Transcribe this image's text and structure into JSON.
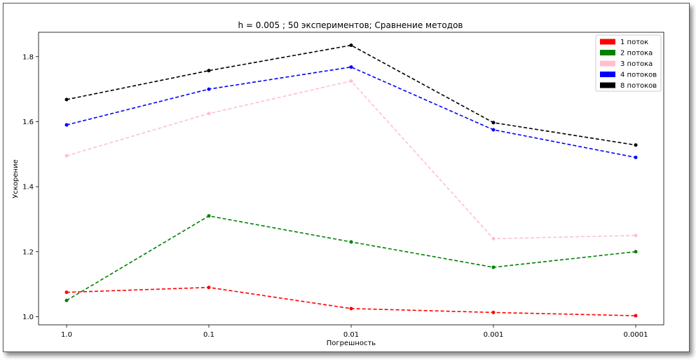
{
  "chart_data": {
    "type": "line",
    "title": "h = 0.005 ; 50 экспериментов; Сравнение методов",
    "xlabel": "Погрешность",
    "ylabel": "Ускорение",
    "categories": [
      "1.0",
      "0.1",
      "0.01",
      "0.001",
      "0.0001"
    ],
    "ylim": [
      0.975,
      1.875
    ],
    "yticks": [
      1.0,
      1.2,
      1.4,
      1.6,
      1.8
    ],
    "ytick_labels": [
      "1.0",
      "1.2",
      "1.4",
      "1.6",
      "1.8"
    ],
    "grid": false,
    "legend_position": "top-right",
    "series": [
      {
        "name": "1 поток",
        "color": "#ff0000",
        "values": [
          1.075,
          1.09,
          1.025,
          1.013,
          1.003
        ]
      },
      {
        "name": "2 потока",
        "color": "#008000",
        "values": [
          1.05,
          1.31,
          1.23,
          1.152,
          1.2
        ]
      },
      {
        "name": "3 потока",
        "color": "#ffc0cb",
        "values": [
          1.495,
          1.625,
          1.725,
          1.24,
          1.25
        ]
      },
      {
        "name": "4 потоков",
        "color": "#0000ff",
        "values": [
          1.59,
          1.7,
          1.768,
          1.575,
          1.49
        ]
      },
      {
        "name": "8 потоков",
        "color": "#000000",
        "values": [
          1.668,
          1.757,
          1.835,
          1.597,
          1.528
        ]
      }
    ]
  }
}
